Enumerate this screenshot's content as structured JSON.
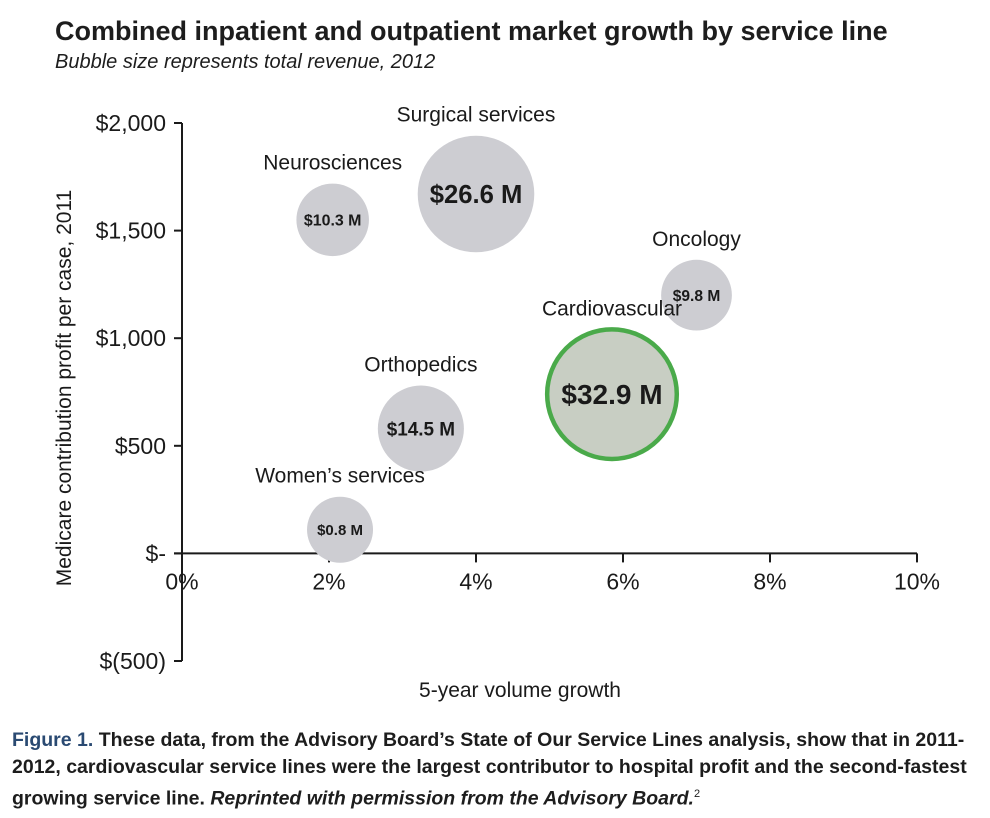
{
  "chart_data": {
    "type": "bubble",
    "title": "Combined inpatient and outpatient market growth by service line",
    "subtitle": "Bubble size represents total revenue, 2012",
    "xlabel": "5-year volume growth",
    "ylabel": "Medicare contribution profit per case, 2011",
    "xlim": [
      0,
      10
    ],
    "ylim": [
      -500,
      2000
    ],
    "x_ticks": [
      0,
      2,
      4,
      6,
      8,
      10
    ],
    "x_tick_labels": [
      "0%",
      "2%",
      "4%",
      "6%",
      "8%",
      "10%"
    ],
    "y_ticks": [
      2000,
      1500,
      1000,
      500,
      0,
      -500
    ],
    "y_tick_labels": [
      "$2,000",
      "$1,500",
      "$1,000",
      "$500",
      "$-",
      "$(500)"
    ],
    "series": [
      {
        "name": "Surgical services",
        "x": 4.0,
        "y": 1670,
        "revenue": 26.6,
        "value_label": "$26.6 M",
        "highlight": false
      },
      {
        "name": "Neurosciences",
        "x": 2.05,
        "y": 1550,
        "revenue": 10.3,
        "value_label": "$10.3 M",
        "highlight": false
      },
      {
        "name": "Oncology",
        "x": 7.0,
        "y": 1200,
        "revenue": 9.8,
        "value_label": "$9.8 M",
        "highlight": false
      },
      {
        "name": "Cardiovascular",
        "x": 5.85,
        "y": 740,
        "revenue": 32.9,
        "value_label": "$32.9 M",
        "highlight": true
      },
      {
        "name": "Orthopedics",
        "x": 3.25,
        "y": 580,
        "revenue": 14.5,
        "value_label": "$14.5 M",
        "highlight": false
      },
      {
        "name": "Women’s services",
        "x": 2.15,
        "y": 110,
        "revenue": 0.8,
        "value_label": "$0.8 M",
        "highlight": false
      }
    ],
    "colors": {
      "bubble": "#cdcdd2",
      "highlight_fill": "#c8cec3",
      "highlight_ring": "#4aaa4a",
      "axis": "#1a1a1a"
    }
  },
  "caption": {
    "figure_label": "Figure 1.",
    "text": " These data, from the Advisory Board’s State of Our Service Lines analysis, show that in 2011-2012, cardiovascular service lines were the largest contributor to hospital profit and the second-fastest growing service line. ",
    "reprint": "Reprinted with permission from the Advisory Board.",
    "footnote": "2"
  }
}
